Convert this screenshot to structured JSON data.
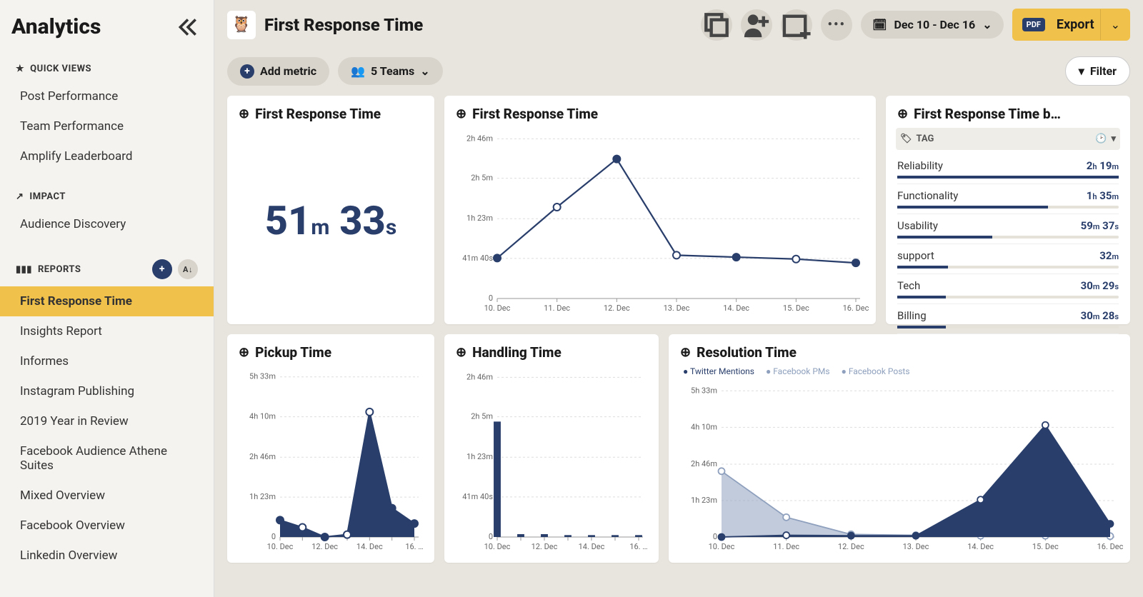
{
  "colors": {
    "brand": "#293e6b",
    "accent": "#f0c14b",
    "muted": "#d8d4cc",
    "grid": "#dddddd",
    "bg": "#e8e5de",
    "area2": "#8ea0bd"
  },
  "sidebar": {
    "title": "Analytics",
    "quick_views_label": "QUICK VIEWS",
    "quick_views": [
      "Post Performance",
      "Team Performance",
      "Amplify Leaderboard"
    ],
    "impact_label": "IMPACT",
    "impact": [
      "Audience Discovery"
    ],
    "reports_label": "REPORTS",
    "reports": [
      "First Response Time",
      "Insights Report",
      "Informes",
      "Instagram Publishing",
      "2019 Year in Review",
      "Facebook Audience Athene Suites",
      "Mixed Overview",
      "Facebook Overview",
      "Linkedin Overview"
    ],
    "active_report_index": 0
  },
  "header": {
    "title": "First Response Time",
    "date_range": "Dec 10 - Dec 16",
    "export_badge": "PDF",
    "export_label": "Export"
  },
  "subbar": {
    "add_metric": "Add metric",
    "teams_label": "5 Teams",
    "filter_label": "Filter"
  },
  "cards": {
    "kpi": {
      "title": "First Response Time",
      "value_html": "51<span class='unit'>m</span> 33<span class='unit'>s</span>"
    },
    "line": {
      "title": "First Response Time",
      "type": "line",
      "x_labels": [
        "10. Dec",
        "11. Dec",
        "12. Dec",
        "13. Dec",
        "14. Dec",
        "15. Dec",
        "16. Dec"
      ],
      "y_ticks": [
        {
          "v": 0,
          "l": "0"
        },
        {
          "v": 41.67,
          "l": "41m 40s"
        },
        {
          "v": 83,
          "l": "1h 23m"
        },
        {
          "v": 125,
          "l": "2h 5m"
        },
        {
          "v": 166,
          "l": "2h 46m"
        }
      ],
      "ymax": 170,
      "values": [
        42,
        95,
        145,
        45,
        43,
        41,
        37
      ],
      "filled_points": [
        0,
        2,
        4,
        6
      ],
      "line_color": "#293e6b",
      "point_fill": "#293e6b",
      "point_hollow": "#ffffff",
      "grid_color": "#dddddd"
    },
    "tags": {
      "title": "First Response Time b…",
      "head": "TAG",
      "max": 139,
      "rows": [
        {
          "name": "Reliability",
          "val_html": "2<span class='u'>h</span> 19<span class='u'>m</span>",
          "w": 100
        },
        {
          "name": "Functionality",
          "val_html": "1<span class='u'>h</span> 35<span class='u'>m</span>",
          "w": 68
        },
        {
          "name": "Usability",
          "val_html": "59<span class='u'>m</span> 37<span class='u'>s</span>",
          "w": 43
        },
        {
          "name": "support",
          "val_html": "32<span class='u'>m</span>",
          "w": 23
        },
        {
          "name": "Tech",
          "val_html": "30<span class='u'>m</span> 29<span class='u'>s</span>",
          "w": 22
        },
        {
          "name": "Billing",
          "val_html": "30<span class='u'>m</span> 28<span class='u'>s</span>",
          "w": 22
        }
      ]
    },
    "pickup": {
      "title": "Pickup Time",
      "type": "area",
      "x_labels": [
        "10. Dec",
        "",
        "12. Dec",
        "",
        "14. Dec",
        "",
        "16. …"
      ],
      "y_ticks": [
        {
          "v": 0,
          "l": "0"
        },
        {
          "v": 83,
          "l": "1h 23m"
        },
        {
          "v": 166,
          "l": "2h 46m"
        },
        {
          "v": 250,
          "l": "4h 10m"
        },
        {
          "v": 333,
          "l": "5h 33m"
        }
      ],
      "ymax": 340,
      "values": [
        35,
        20,
        0,
        5,
        260,
        60,
        28
      ],
      "filled_points": [
        0,
        2,
        5,
        6
      ],
      "fill_color": "#293e6b",
      "line_color": "#293e6b"
    },
    "handling": {
      "title": "Handling Time",
      "type": "bar",
      "x_labels": [
        "10. Dec",
        "",
        "12. Dec",
        "",
        "14. Dec",
        "",
        "16. …"
      ],
      "y_ticks": [
        {
          "v": 0,
          "l": "0"
        },
        {
          "v": 41.67,
          "l": "41m 40s"
        },
        {
          "v": 83,
          "l": "1h 23m"
        },
        {
          "v": 125,
          "l": "2h 5m"
        },
        {
          "v": 166,
          "l": "2h 46m"
        }
      ],
      "ymax": 170,
      "values": [
        120,
        3,
        3,
        2,
        2,
        2,
        2
      ],
      "bar_color": "#293e6b",
      "bar_width": 0.35
    },
    "resolution": {
      "title": "Resolution Time",
      "type": "multi-area",
      "legend": [
        "Twitter Mentions",
        "Facebook PMs",
        "Facebook Posts"
      ],
      "x_labels": [
        "10. Dec",
        "11. Dec",
        "12. Dec",
        "13. Dec",
        "14. Dec",
        "15. Dec",
        "16. Dec"
      ],
      "y_ticks": [
        {
          "v": 0,
          "l": "0"
        },
        {
          "v": 83,
          "l": "1h 23m"
        },
        {
          "v": 166,
          "l": "2h 46m"
        },
        {
          "v": 250,
          "l": "4h 10m"
        },
        {
          "v": 333,
          "l": "5h 33m"
        }
      ],
      "ymax": 340,
      "series": [
        {
          "name": "Twitter Mentions",
          "color": "#293e6b",
          "values": [
            0,
            4,
            3,
            3,
            85,
            255,
            30
          ],
          "filled_points": [
            0,
            2,
            3,
            6
          ]
        },
        {
          "name": "Facebook PMs",
          "color": "#8ea0bd",
          "values": [
            150,
            45,
            6,
            4,
            3,
            3,
            2
          ],
          "filled_points": []
        }
      ]
    }
  }
}
